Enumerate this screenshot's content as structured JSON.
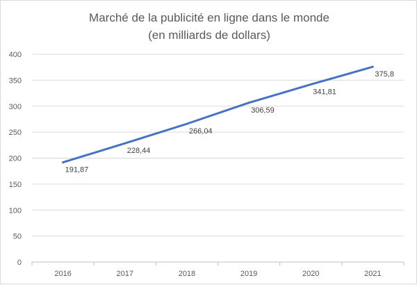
{
  "chart_data": {
    "type": "line",
    "title_lines": [
      "Marché de la publicité en ligne dans le monde",
      "(en milliards de dollars)"
    ],
    "categories": [
      "2016",
      "2017",
      "2018",
      "2019",
      "2020",
      "2021"
    ],
    "series": [
      {
        "values": [
          191.87,
          228.44,
          266.04,
          306.59,
          341.81,
          375.8
        ],
        "labels": [
          "191,87",
          "228,44",
          "266,04",
          "306,59",
          "341,81",
          "375,8"
        ],
        "color": "#4472c4"
      }
    ],
    "y_ticks": [
      "0",
      "50",
      "100",
      "150",
      "200",
      "250",
      "300",
      "350",
      "400"
    ],
    "ylim": [
      0,
      400
    ],
    "grid": true,
    "legend": "none"
  }
}
